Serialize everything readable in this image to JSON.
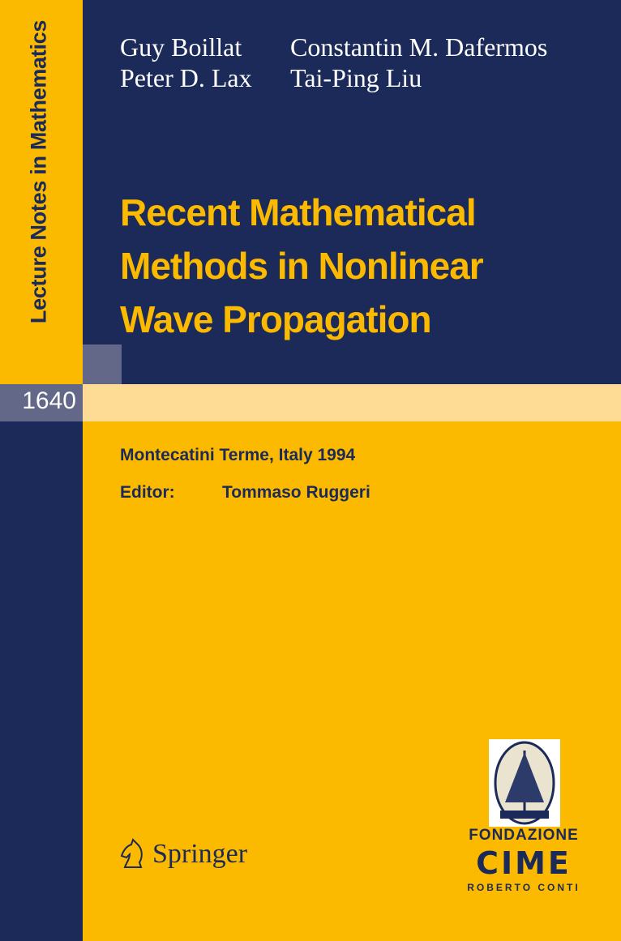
{
  "series": "Lecture Notes in Mathematics",
  "volume": "1640",
  "authors": [
    "Guy Boillat",
    "Constantin M. Dafermos",
    "Peter D. Lax",
    "Tai-Ping Liu"
  ],
  "title_lines": [
    "Recent Mathematical",
    "Methods in Nonlinear",
    "Wave Propagation"
  ],
  "venue": "Montecatini Terme, Italy 1994",
  "editor_label": "Editor:",
  "editor": "Tommaso Ruggeri",
  "publisher": "Springer",
  "logo": {
    "line1": "FONDAZIONE",
    "line2": "CIME",
    "line3": "ROBERTO CONTI"
  },
  "colors": {
    "navy": "#1b2a58",
    "yellow": "#fbb900",
    "grey": "#646888",
    "light_yellow": "#fedc95"
  }
}
